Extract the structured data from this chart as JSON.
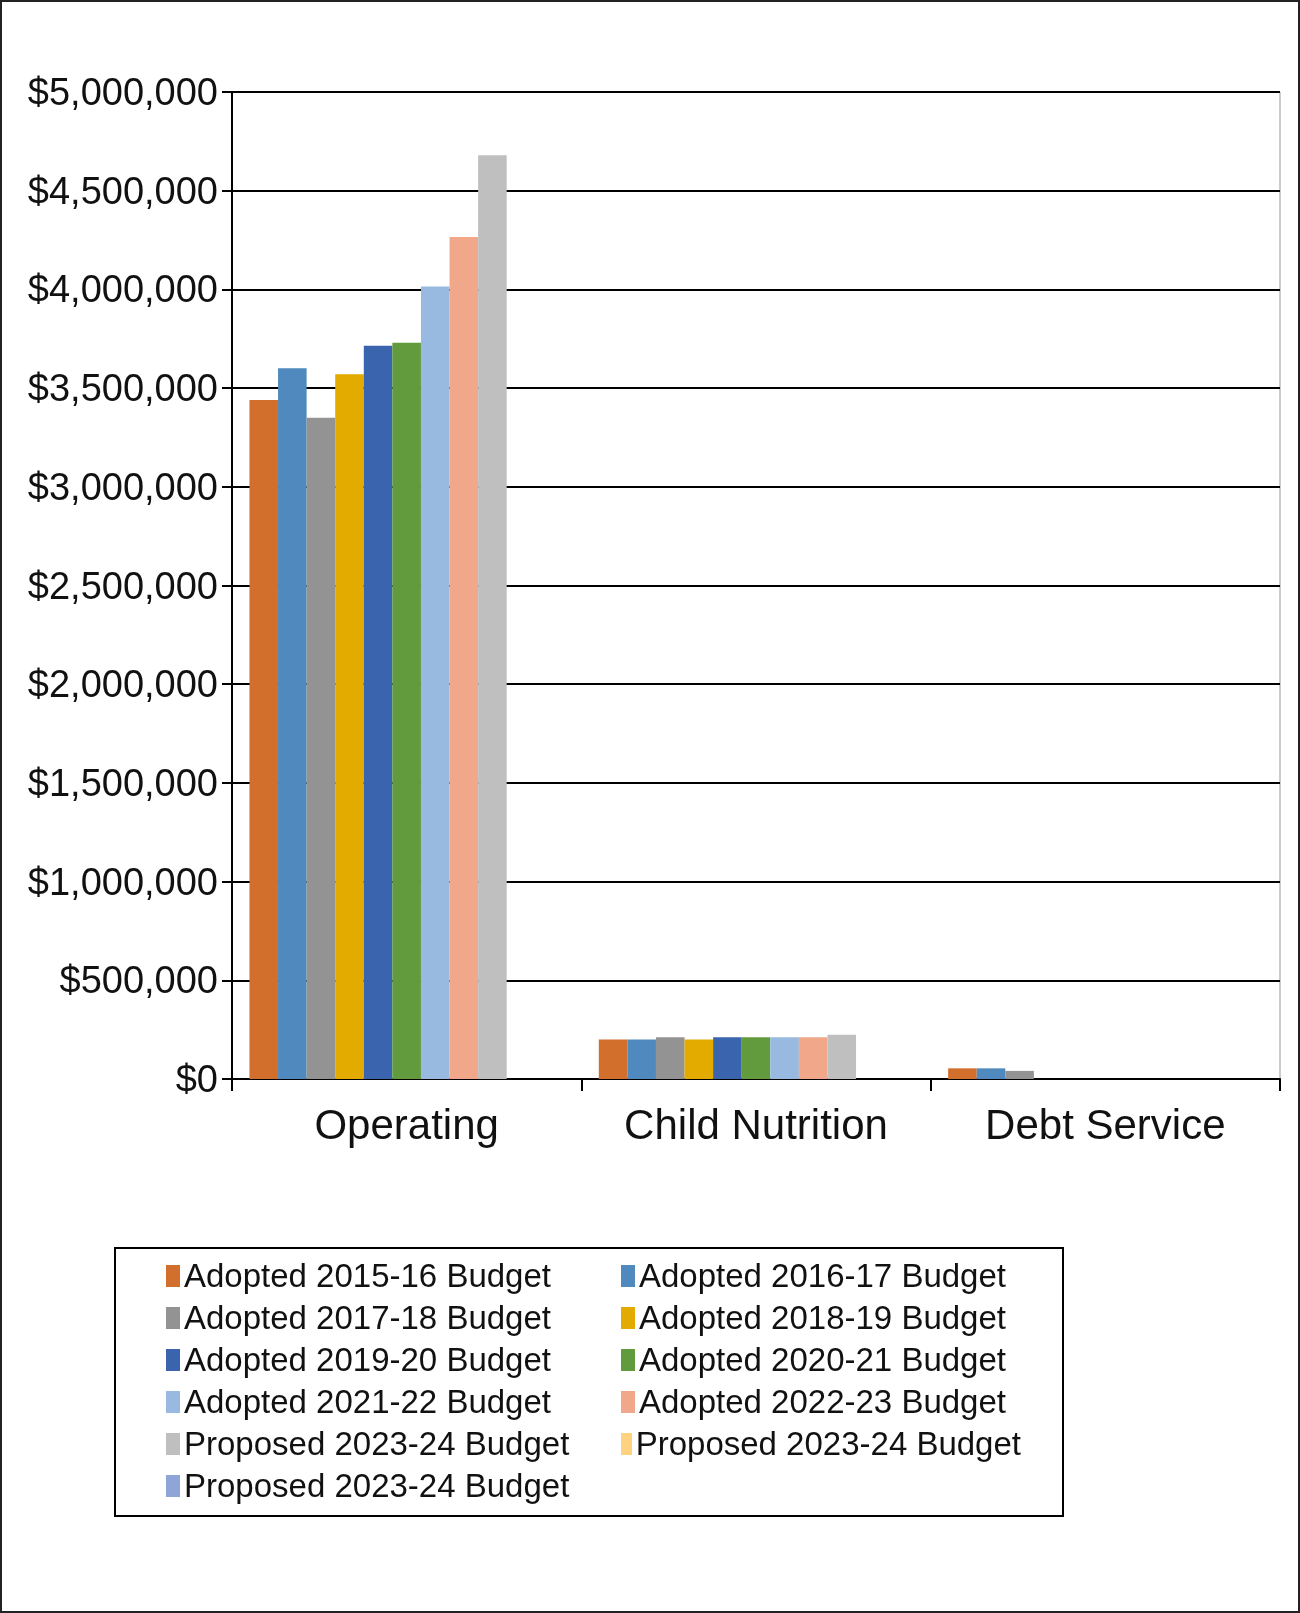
{
  "chart_data": {
    "type": "bar",
    "categories": [
      "Operating",
      "Child Nutrition",
      "Debt Service"
    ],
    "series": [
      {
        "name": "Adopted 2015-16 Budget",
        "color": "#d26f2c",
        "values": [
          3440000,
          200000,
          54000
        ]
      },
      {
        "name": "Adopted 2016-17 Budget",
        "color": "#4f89bd",
        "values": [
          3600000,
          200000,
          54000
        ]
      },
      {
        "name": "Adopted 2017-18 Budget",
        "color": "#939393",
        "values": [
          3350000,
          212000,
          41000
        ]
      },
      {
        "name": "Adopted 2018-19 Budget",
        "color": "#e3aa00",
        "values": [
          3570000,
          200000,
          null
        ]
      },
      {
        "name": "Adopted 2019-20 Budget",
        "color": "#3a64ae",
        "values": [
          3715000,
          212000,
          null
        ]
      },
      {
        "name": "Adopted 2020-21 Budget",
        "color": "#629a3e",
        "values": [
          3730000,
          212000,
          null
        ]
      },
      {
        "name": "Adopted 2021-22 Budget",
        "color": "#99bae0",
        "values": [
          4015000,
          212000,
          null
        ]
      },
      {
        "name": "Adopted 2022-23 Budget",
        "color": "#f0a78a",
        "values": [
          4265000,
          212000,
          null
        ]
      },
      {
        "name": "Proposed 2023-24 Budget",
        "color": "#bfbfbf",
        "values": [
          4680000,
          224000,
          null
        ]
      },
      {
        "name": "Proposed 2023-24 Budget",
        "color": "#ffd27f",
        "values": [
          null,
          null,
          null
        ]
      },
      {
        "name": "Proposed 2023-24 Budget",
        "color": "#8fa5d8",
        "values": [
          null,
          null,
          null
        ]
      }
    ],
    "ylim": [
      0,
      5000000
    ],
    "yticks": [
      {
        "value": 0,
        "label": "$0"
      },
      {
        "value": 500000,
        "label": "$500,000"
      },
      {
        "value": 1000000,
        "label": "$1,000,000"
      },
      {
        "value": 1500000,
        "label": "$1,500,000"
      },
      {
        "value": 2000000,
        "label": "$2,000,000"
      },
      {
        "value": 2500000,
        "label": "$2,500,000"
      },
      {
        "value": 3000000,
        "label": "$3,000,000"
      },
      {
        "value": 3500000,
        "label": "$3,500,000"
      },
      {
        "value": 4000000,
        "label": "$4,000,000"
      },
      {
        "value": 4500000,
        "label": "$4,500,000"
      },
      {
        "value": 5000000,
        "label": "$5,000,000"
      }
    ],
    "grid": "y",
    "legend": "bottom"
  }
}
